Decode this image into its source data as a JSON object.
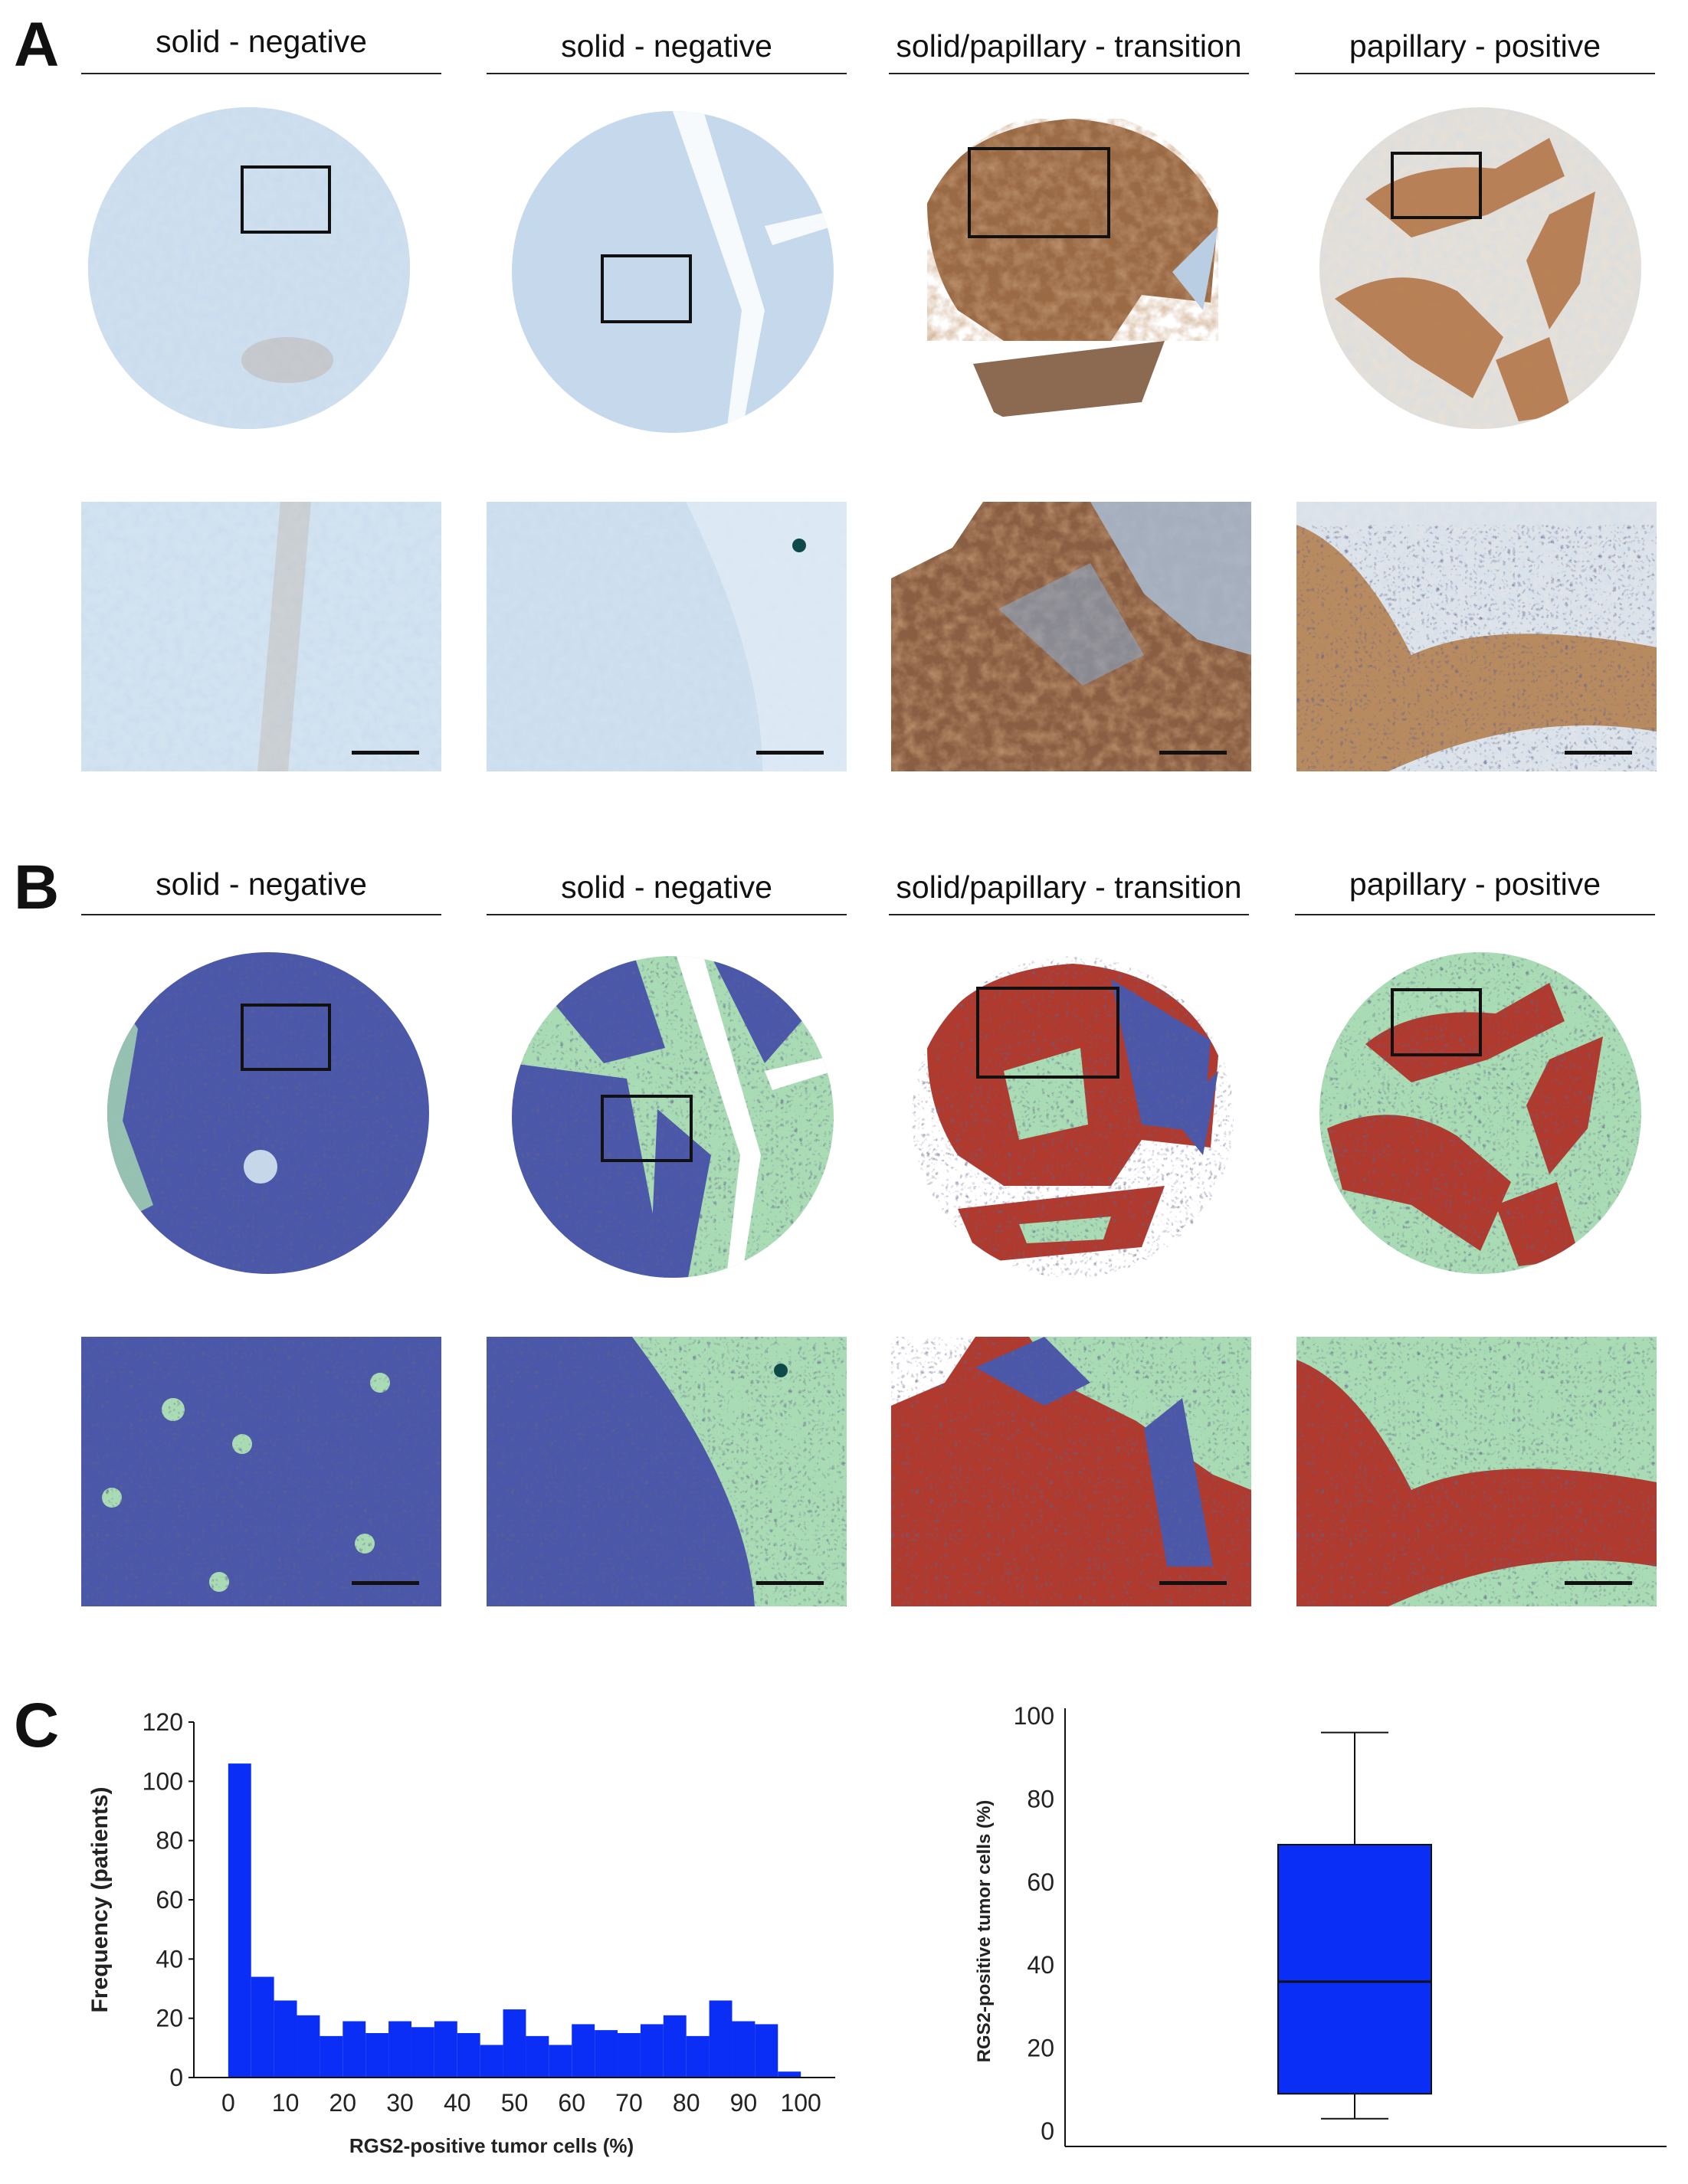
{
  "panels": {
    "a": {
      "letter": "A"
    },
    "b": {
      "letter": "B"
    },
    "c": {
      "letter": "C"
    }
  },
  "columns": [
    {
      "title": "solid - negative"
    },
    {
      "title": "solid - negative"
    },
    {
      "title": "solid/papillary - transition"
    },
    {
      "title": "papillary - positive"
    }
  ],
  "colors": {
    "hematoxylin": "#b9d0e6",
    "dab": "#a5673a",
    "seg_negative": "#4a56a8",
    "seg_positive": "#b03a2e",
    "seg_stroma": "#a9dcb4",
    "chart_bar": "#0a2ef5"
  },
  "chart_data": [
    {
      "type": "bar",
      "title": "",
      "xlabel": "RGS2-positive tumor cells (%)",
      "ylabel": "Frequency (patients)",
      "bin_width": 4,
      "x": [
        0,
        4,
        8,
        12,
        16,
        20,
        24,
        28,
        32,
        36,
        40,
        44,
        48,
        52,
        56,
        60,
        64,
        68,
        72,
        76,
        80,
        84,
        88,
        92,
        96
      ],
      "values": [
        106,
        34,
        26,
        21,
        14,
        19,
        15,
        19,
        17,
        19,
        15,
        11,
        23,
        14,
        11,
        18,
        16,
        15,
        18,
        21,
        14,
        26,
        19,
        18,
        2
      ],
      "xlim": [
        -6,
        106
      ],
      "ylim": [
        0,
        120
      ],
      "xticks": [
        "0",
        "10",
        "20",
        "30",
        "40",
        "50",
        "60",
        "70",
        "80",
        "90",
        "100"
      ],
      "yticks": [
        "0",
        "20",
        "40",
        "60",
        "80",
        "100",
        "120"
      ],
      "grid": false
    },
    {
      "type": "box",
      "title": "",
      "xlabel": "",
      "ylabel": "RGS2-positive tumor cells (%)",
      "box": {
        "min": 3,
        "q1": 9,
        "median": 36,
        "q3": 69,
        "max": 96
      },
      "ylim": [
        0,
        100
      ],
      "yticks": [
        "0",
        "20",
        "40",
        "60",
        "80",
        "100"
      ],
      "grid": false
    }
  ]
}
